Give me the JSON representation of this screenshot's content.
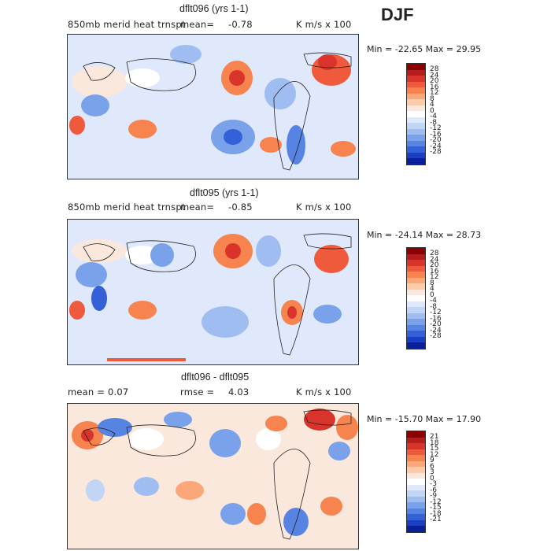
{
  "season": "DJF",
  "panels": [
    {
      "title": "dflt096 (yrs 1-1)",
      "left_label": "850mb merid heat trnspt",
      "stat_label": "mean=",
      "stat_value": "-0.78",
      "units": "K m/s x 100",
      "min_max": "Min = -22.65 Max = 29.95",
      "colorbar_labels": [
        "28",
        "24",
        "20",
        "16",
        "12",
        "8",
        "4",
        "0",
        "-4",
        "-8",
        "-12",
        "-16",
        "-20",
        "-24",
        "-28"
      ]
    },
    {
      "title": "dflt095 (yrs 1-1)",
      "left_label": "850mb merid heat trnspt",
      "stat_label": "mean=",
      "stat_value": "-0.85",
      "units": "K m/s x 100",
      "min_max": "Min = -24.14 Max = 28.73",
      "colorbar_labels": [
        "28",
        "24",
        "20",
        "16",
        "12",
        "8",
        "4",
        "0",
        "-4",
        "-8",
        "-12",
        "-16",
        "-20",
        "-24",
        "-28"
      ]
    },
    {
      "title": "dflt096 - dflt095",
      "left_label": "mean =   0.07",
      "stat_label": "rmse =",
      "stat_value": "4.03",
      "units": "K m/s x 100",
      "min_max": "Min = -15.70 Max = 17.90",
      "colorbar_labels": [
        "21",
        "18",
        "15",
        "12",
        "9",
        "6",
        "3",
        "0",
        "-3",
        "-6",
        "-9",
        "-12",
        "-15",
        "-18",
        "-21"
      ]
    }
  ],
  "colors": {
    "scale": [
      "#8b0000",
      "#b51d1d",
      "#d9342b",
      "#ee5a3b",
      "#f7834f",
      "#fba77a",
      "#fdcbaa",
      "#fbe8dc",
      "#ffffff",
      "#dfe9fb",
      "#c1d5f5",
      "#9fbdf0",
      "#7aa2ea",
      "#5783e2",
      "#3461d7",
      "#1a3fc4",
      "#0a1f9a"
    ]
  }
}
